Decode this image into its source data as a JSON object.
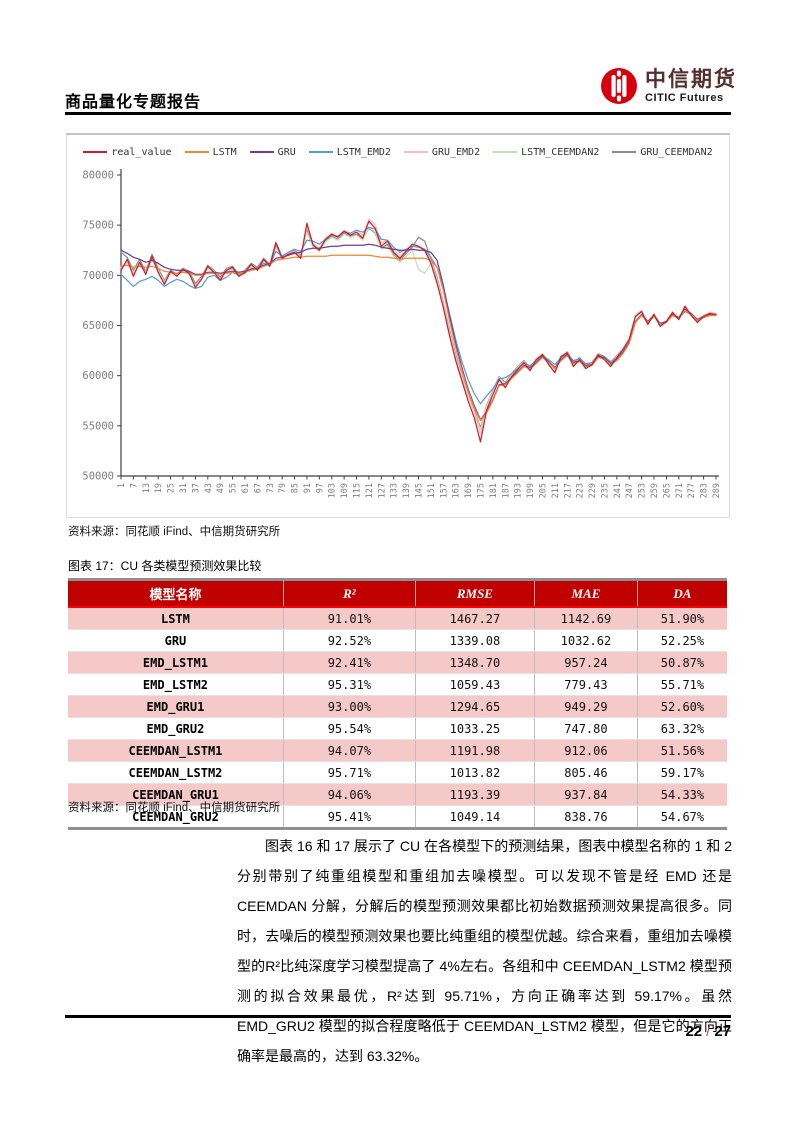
{
  "header": {
    "report_type": "商品量化专题报告",
    "logo_cn": "中信期货",
    "logo_en": "CITIC Futures"
  },
  "chart_source": "资料来源：同花顺 iFind、中信期货研究所",
  "table_caption": "图表 17：CU 各类模型预测效果比较",
  "table": {
    "columns": [
      "模型名称",
      "R²",
      "RMSE",
      "MAE",
      "DA"
    ],
    "rows": [
      [
        "LSTM",
        "91.01%",
        "1467.27",
        "1142.69",
        "51.90%"
      ],
      [
        "GRU",
        "92.52%",
        "1339.08",
        "1032.62",
        "52.25%"
      ],
      [
        "EMD_LSTM1",
        "92.41%",
        "1348.70",
        "957.24",
        "50.87%"
      ],
      [
        "EMD_LSTM2",
        "95.31%",
        "1059.43",
        "779.43",
        "55.71%"
      ],
      [
        "EMD_GRU1",
        "93.00%",
        "1294.65",
        "949.29",
        "52.60%"
      ],
      [
        "EMD_GRU2",
        "95.54%",
        "1033.25",
        "747.80",
        "63.32%"
      ],
      [
        "CEEMDAN_LSTM1",
        "94.07%",
        "1191.98",
        "912.06",
        "51.56%"
      ],
      [
        "CEEMDAN_LSTM2",
        "95.71%",
        "1013.82",
        "805.46",
        "59.17%"
      ],
      [
        "CEEMDAN_GRU1",
        "94.06%",
        "1193.39",
        "937.84",
        "54.33%"
      ],
      [
        "CEEMDAN_GRU2",
        "95.41%",
        "1049.14",
        "838.76",
        "54.67%"
      ]
    ]
  },
  "table_source": "资料来源：同花顺 iFind、中信期货研究所",
  "paragraph": "图表 16 和 17 展示了 CU 在各模型下的预测结果，图表中模型名称的 1 和 2 分别带别了纯重组模型和重组加去噪模型。可以发现不管是经 EMD 还是 CEEMDAN 分解，分解后的模型预测效果都比初始数据预测效果提高很多。同时，去噪后的模型预测效果也要比纯重组的模型优越。综合来看，重组加去噪模型的R²比纯深度学习模型提高了 4%左右。各组和中 CEEMDAN_LSTM2 模型预测的拟合效果最优，R²达到 95.71%，方向正确率达到 59.17%。虽然 EMD_GRU2 模型的拟合程度略低于 CEEMDAN_LSTM2 模型，但是它的方向正确率是最高的，达到 63.32%。",
  "footer": {
    "page": "22",
    "separator": "/",
    "total": "27"
  },
  "colors": {
    "accent_red": "#c00000",
    "table_row_pink": "#f6c9c9",
    "axis_gray": "#7f7f7f",
    "logo_red": "#d7000f"
  },
  "chart_data": {
    "type": "line",
    "title": "",
    "xlabel": "",
    "ylabel": "",
    "grid": false,
    "legend_position": "top",
    "ylim": [
      50000,
      80000
    ],
    "y_ticks": [
      50000,
      55000,
      60000,
      65000,
      70000,
      75000,
      80000
    ],
    "xlim": [
      1,
      289
    ],
    "x_tick_labels": [
      1,
      7,
      13,
      19,
      25,
      31,
      37,
      43,
      49,
      55,
      61,
      67,
      73,
      79,
      85,
      91,
      97,
      103,
      109,
      115,
      121,
      127,
      133,
      139,
      145,
      151,
      157,
      163,
      169,
      175,
      181,
      187,
      193,
      199,
      205,
      211,
      217,
      223,
      229,
      235,
      241,
      247,
      253,
      259,
      265,
      271,
      277,
      283,
      289
    ],
    "x": [
      1,
      4,
      7,
      10,
      13,
      16,
      19,
      22,
      25,
      28,
      31,
      34,
      37,
      40,
      43,
      46,
      49,
      52,
      55,
      58,
      61,
      64,
      67,
      70,
      73,
      76,
      79,
      82,
      85,
      88,
      91,
      94,
      97,
      100,
      103,
      106,
      109,
      112,
      115,
      118,
      121,
      124,
      127,
      130,
      133,
      136,
      139,
      142,
      145,
      148,
      151,
      154,
      157,
      160,
      163,
      166,
      169,
      172,
      175,
      178,
      181,
      184,
      187,
      190,
      193,
      196,
      199,
      202,
      205,
      208,
      211,
      214,
      217,
      220,
      223,
      226,
      229,
      232,
      235,
      238,
      241,
      244,
      247,
      250,
      253,
      256,
      259,
      262,
      265,
      268,
      271,
      274,
      277,
      280,
      283,
      286,
      289
    ],
    "series": [
      {
        "name": "real_value",
        "color": "#c8232c",
        "values": [
          70500,
          71600,
          69900,
          71300,
          70100,
          71900,
          70300,
          69100,
          70400,
          69900,
          70600,
          70200,
          68800,
          69600,
          70900,
          70300,
          69500,
          70500,
          70800,
          69900,
          70300,
          71100,
          70500,
          71600,
          70900,
          73200,
          71700,
          72100,
          72300,
          71700,
          75200,
          73000,
          72500,
          73600,
          74100,
          73800,
          74400,
          74000,
          74300,
          73700,
          75400,
          74700,
          72900,
          73400,
          72300,
          71700,
          72400,
          73100,
          72900,
          72500,
          71200,
          69200,
          66800,
          64000,
          61500,
          59500,
          57500,
          55800,
          53400,
          56600,
          58100,
          59600,
          58800,
          59900,
          60600,
          61300,
          60500,
          61600,
          62100,
          61100,
          60300,
          61900,
          62300,
          60900,
          61600,
          60700,
          61100,
          62100,
          61600,
          60900,
          61800,
          62600,
          63600,
          65900,
          66400,
          65100,
          66100,
          64900,
          65400,
          66300,
          65600,
          66900,
          66000,
          65300,
          65900,
          66200,
          66100
        ]
      },
      {
        "name": "LSTM",
        "color": "#ee8833",
        "values": [
          70900,
          71000,
          70800,
          70900,
          70800,
          70900,
          70700,
          70400,
          70300,
          70200,
          70300,
          70200,
          70000,
          70000,
          70200,
          70200,
          70100,
          70200,
          70300,
          70200,
          70300,
          70500,
          70600,
          70900,
          71100,
          71500,
          71600,
          71700,
          71800,
          71800,
          71900,
          71900,
          71900,
          71900,
          72000,
          72000,
          72000,
          72000,
          72000,
          72000,
          72000,
          71900,
          71800,
          71800,
          71700,
          71600,
          71700,
          71700,
          71700,
          71700,
          71500,
          70800,
          68500,
          65500,
          62800,
          60500,
          58500,
          56800,
          55500,
          56300,
          57500,
          59000,
          59100,
          59700,
          60300,
          60900,
          60700,
          61200,
          61800,
          61300,
          60700,
          61500,
          62000,
          61200,
          61400,
          60900,
          61000,
          61800,
          61700,
          61100,
          61500,
          62200,
          63200,
          65300,
          66000,
          65300,
          65900,
          65100,
          65300,
          66000,
          65700,
          66500,
          66100,
          65500,
          65800,
          66000,
          66000
        ]
      },
      {
        "name": "GRU",
        "color": "#6a3fa0",
        "values": [
          72500,
          72200,
          71800,
          71600,
          71300,
          71500,
          71200,
          70800,
          70600,
          70500,
          70500,
          70400,
          70100,
          70100,
          70300,
          70300,
          70200,
          70300,
          70400,
          70300,
          70400,
          70600,
          70700,
          71000,
          71200,
          71700,
          71800,
          72000,
          72200,
          72300,
          72600,
          72700,
          72700,
          72800,
          72900,
          72900,
          73000,
          73000,
          73000,
          73000,
          73100,
          73000,
          72800,
          72700,
          72600,
          72500,
          72500,
          72600,
          72500,
          72500,
          72300,
          71500,
          69000,
          66000,
          63200,
          60800,
          58700,
          57000,
          55600,
          56400,
          57600,
          59100,
          59200,
          59800,
          60400,
          61000,
          60800,
          61300,
          61900,
          61400,
          60800,
          61600,
          62100,
          61300,
          61500,
          61000,
          61100,
          61900,
          61800,
          61200,
          61600,
          62300,
          63300,
          65400,
          66100,
          65400,
          66000,
          65200,
          65400,
          66100,
          65800,
          66600,
          66200,
          65600,
          65900,
          66100,
          66100
        ]
      },
      {
        "name": "LSTM_EMD2",
        "color": "#5b9bd5",
        "values": [
          70100,
          69500,
          68900,
          69400,
          69600,
          69900,
          69500,
          68900,
          69300,
          69600,
          69400,
          69000,
          68700,
          68900,
          69800,
          70000,
          69500,
          69800,
          70300,
          70000,
          70200,
          70700,
          70600,
          71200,
          71000,
          72400,
          71900,
          72300,
          72600,
          72400,
          73500,
          73400,
          73100,
          73600,
          74000,
          73900,
          74300,
          74200,
          74500,
          74300,
          74800,
          74600,
          73600,
          73500,
          72800,
          72300,
          72600,
          72900,
          72800,
          72600,
          71800,
          70800,
          68800,
          66200,
          63600,
          61400,
          59600,
          58200,
          57200,
          58000,
          58700,
          59700,
          59800,
          60200,
          60700,
          61200,
          61000,
          61500,
          62000,
          61600,
          61100,
          61800,
          62200,
          61500,
          61700,
          61200,
          61300,
          62000,
          61900,
          61400,
          61700,
          62400,
          63300,
          65300,
          66000,
          65400,
          65900,
          65200,
          65400,
          66000,
          65700,
          66400,
          66100,
          65600,
          65800,
          66000,
          66000
        ]
      },
      {
        "name": "GRU_EMD2",
        "color": "#f2bfc4",
        "values": [
          70600,
          71300,
          70100,
          71100,
          70200,
          71600,
          70400,
          69400,
          70300,
          70000,
          70500,
          70200,
          69000,
          69700,
          70800,
          70400,
          69600,
          70500,
          70700,
          70000,
          70400,
          71000,
          70600,
          71500,
          71000,
          73000,
          71900,
          72200,
          72400,
          71900,
          74800,
          73200,
          72700,
          73700,
          74200,
          73900,
          74500,
          74200,
          74500,
          74000,
          75600,
          75100,
          73200,
          73500,
          72500,
          71900,
          72500,
          73100,
          72900,
          72600,
          71400,
          69600,
          67200,
          64400,
          61900,
          59900,
          58000,
          56300,
          54200,
          56800,
          58300,
          59700,
          59000,
          60000,
          60700,
          61400,
          60600,
          61700,
          62200,
          61200,
          60500,
          62000,
          62400,
          61100,
          61700,
          60900,
          61200,
          62200,
          61700,
          61100,
          61900,
          62700,
          63700,
          66000,
          66500,
          65300,
          66200,
          65100,
          65500,
          66400,
          65700,
          67000,
          66100,
          65400,
          66000,
          66300,
          66200
        ]
      },
      {
        "name": "LSTM_CEEMDAN2",
        "color": "#c6deb8",
        "values": [
          70800,
          71300,
          70300,
          71000,
          70300,
          71500,
          70500,
          69300,
          70200,
          70000,
          70400,
          70100,
          69000,
          69700,
          70700,
          70300,
          69600,
          70400,
          70600,
          70000,
          70300,
          70900,
          70600,
          71400,
          70900,
          72800,
          71700,
          72000,
          72200,
          71700,
          74300,
          72800,
          72400,
          73300,
          73800,
          73500,
          74100,
          73800,
          74000,
          73500,
          74800,
          74300,
          72600,
          72900,
          71900,
          71300,
          71900,
          72500,
          70600,
          70200,
          71200,
          69400,
          67000,
          64300,
          61800,
          59800,
          58000,
          56400,
          54600,
          57000,
          58400,
          59800,
          59200,
          60100,
          60800,
          61400,
          60700,
          61600,
          62100,
          61300,
          60600,
          61900,
          62300,
          61200,
          61700,
          61000,
          61200,
          62100,
          61800,
          61200,
          61900,
          62600,
          63500,
          65800,
          66300,
          65200,
          66100,
          65000,
          65400,
          66200,
          65600,
          66800,
          66000,
          65400,
          65900,
          66200,
          66100
        ]
      },
      {
        "name": "GRU_CEEMDAN2",
        "color": "#8a8d8a",
        "values": [
          72300,
          71800,
          70500,
          71600,
          70400,
          72100,
          70700,
          69500,
          70500,
          70100,
          70700,
          70400,
          69200,
          69900,
          71000,
          70500,
          69800,
          70700,
          70900,
          70100,
          70500,
          71200,
          70800,
          71700,
          71100,
          73300,
          71900,
          72300,
          72500,
          72000,
          74500,
          73100,
          72600,
          73500,
          73900,
          73600,
          74200,
          73900,
          74100,
          73600,
          74700,
          74200,
          72700,
          73100,
          72100,
          71500,
          72200,
          72800,
          73800,
          73400,
          71600,
          69800,
          67300,
          64600,
          62100,
          60000,
          58200,
          56600,
          54800,
          57100,
          58500,
          59900,
          59300,
          60200,
          60900,
          61500,
          60800,
          61700,
          62200,
          61400,
          60700,
          62000,
          62400,
          61300,
          61800,
          61100,
          61300,
          62200,
          61900,
          61300,
          62000,
          62700,
          63600,
          65900,
          66400,
          65300,
          66200,
          65100,
          65500,
          66300,
          65700,
          66900,
          66100,
          65500,
          66000,
          66300,
          66200
        ]
      }
    ]
  }
}
